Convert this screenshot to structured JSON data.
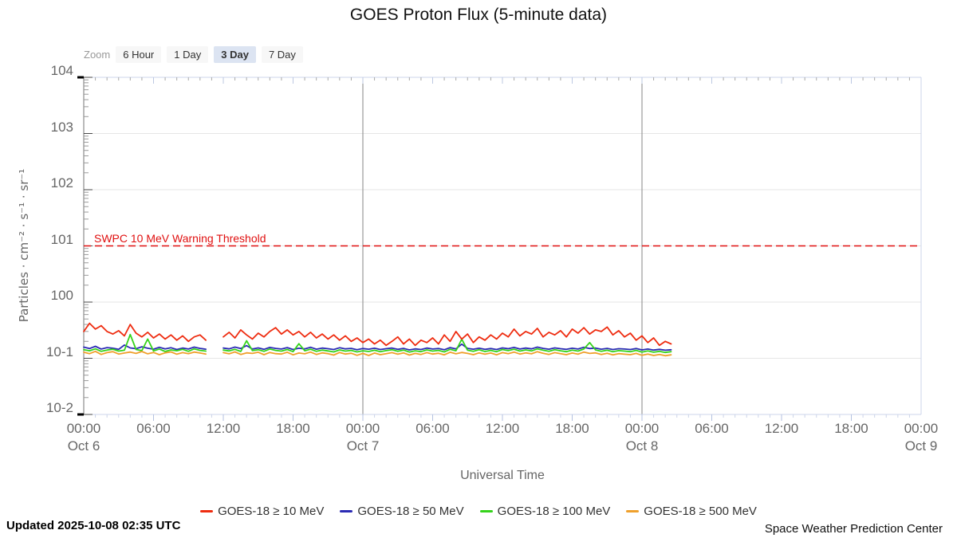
{
  "title": "GOES Proton Flux (5-minute data)",
  "zoom": {
    "label": "Zoom",
    "buttons": [
      {
        "label": "6 Hour",
        "selected": false
      },
      {
        "label": "1 Day",
        "selected": false
      },
      {
        "label": "3 Day",
        "selected": true
      },
      {
        "label": "7 Day",
        "selected": false
      }
    ]
  },
  "y_axis": {
    "title": "Particles · cm⁻² · s⁻¹ · sr⁻¹",
    "ticks": [
      {
        "exp": 4,
        "label": "104"
      },
      {
        "exp": 3,
        "label": "103"
      },
      {
        "exp": 2,
        "label": "102"
      },
      {
        "exp": 1,
        "label": "101"
      },
      {
        "exp": 0,
        "label": "100"
      },
      {
        "exp": -1,
        "label": "10-1"
      },
      {
        "exp": -2,
        "label": "10-2"
      }
    ]
  },
  "x_axis": {
    "title": "Universal Time",
    "ticks": [
      {
        "hour": 0,
        "label": "00:00",
        "date": "Oct 6"
      },
      {
        "hour": 6,
        "label": "06:00",
        "date": ""
      },
      {
        "hour": 12,
        "label": "12:00",
        "date": ""
      },
      {
        "hour": 18,
        "label": "18:00",
        "date": ""
      },
      {
        "hour": 24,
        "label": "00:00",
        "date": "Oct 7"
      },
      {
        "hour": 30,
        "label": "06:00",
        "date": ""
      },
      {
        "hour": 36,
        "label": "12:00",
        "date": ""
      },
      {
        "hour": 42,
        "label": "18:00",
        "date": ""
      },
      {
        "hour": 48,
        "label": "00:00",
        "date": "Oct 8"
      },
      {
        "hour": 54,
        "label": "06:00",
        "date": ""
      },
      {
        "hour": 60,
        "label": "12:00",
        "date": ""
      },
      {
        "hour": 66,
        "label": "18:00",
        "date": ""
      },
      {
        "hour": 72,
        "label": "00:00",
        "date": "Oct 9"
      }
    ]
  },
  "threshold": {
    "label": "SWPC 10 MeV Warning Threshold",
    "value": 10,
    "color": "#e01010"
  },
  "footer": {
    "updated": "Updated 2025-10-08 02:35 UTC",
    "source": "Space Weather Prediction Center"
  },
  "chart_data": {
    "type": "line",
    "title": "GOES Proton Flux (5-minute data)",
    "xlabel": "Universal Time",
    "ylabel": "Particles · cm⁻² · s⁻¹ · sr⁻¹",
    "x_unit": "hours since Oct 6 00:00 UTC",
    "x_start": 0,
    "x_step": 0.5,
    "xlim": [
      0,
      72
    ],
    "y_scale": "log",
    "ylim": [
      0.01,
      10000
    ],
    "grid": true,
    "day_gridlines_hours": [
      24,
      48
    ],
    "legend_position": "bottom",
    "threshold_value": 10,
    "data_gap_hours": [
      11,
      11.5
    ],
    "series": [
      {
        "name": "GOES-18 ≥ 10 MeV",
        "color": "#ee2c10",
        "values": [
          0.3,
          0.42,
          0.33,
          0.38,
          0.3,
          0.27,
          0.31,
          0.25,
          0.4,
          0.28,
          0.24,
          0.29,
          0.23,
          0.27,
          0.22,
          0.26,
          0.21,
          0.25,
          0.2,
          0.24,
          0.26,
          0.21,
          null,
          null,
          0.24,
          0.29,
          0.23,
          0.32,
          0.26,
          0.22,
          0.28,
          0.24,
          0.3,
          0.35,
          0.27,
          0.32,
          0.26,
          0.3,
          0.24,
          0.29,
          0.23,
          0.27,
          0.22,
          0.26,
          0.21,
          0.25,
          0.2,
          0.23,
          0.19,
          0.22,
          0.18,
          0.21,
          0.17,
          0.2,
          0.24,
          0.18,
          0.22,
          0.17,
          0.21,
          0.19,
          0.23,
          0.18,
          0.26,
          0.2,
          0.3,
          0.22,
          0.27,
          0.19,
          0.24,
          0.21,
          0.26,
          0.22,
          0.28,
          0.24,
          0.33,
          0.25,
          0.3,
          0.27,
          0.34,
          0.24,
          0.29,
          0.26,
          0.31,
          0.24,
          0.33,
          0.28,
          0.35,
          0.27,
          0.32,
          0.3,
          0.36,
          0.26,
          0.31,
          0.24,
          0.28,
          0.21,
          0.25,
          0.19,
          0.23,
          0.17,
          0.2,
          0.18
        ]
      },
      {
        "name": "GOES-18 ≥ 50 MeV",
        "color": "#2b2bb4",
        "values": [
          0.158,
          0.149,
          0.163,
          0.146,
          0.155,
          0.151,
          0.144,
          0.172,
          0.153,
          0.148,
          0.16,
          0.151,
          0.145,
          0.157,
          0.147,
          0.154,
          0.143,
          0.152,
          0.146,
          0.158,
          0.15,
          0.145,
          null,
          null,
          0.152,
          0.147,
          0.158,
          0.149,
          0.168,
          0.146,
          0.153,
          0.144,
          0.156,
          0.15,
          0.146,
          0.155,
          0.143,
          0.151,
          0.147,
          0.157,
          0.145,
          0.152,
          0.148,
          0.143,
          0.154,
          0.147,
          0.15,
          0.142,
          0.149,
          0.145,
          0.151,
          0.143,
          0.148,
          0.152,
          0.144,
          0.15,
          0.141,
          0.147,
          0.143,
          0.152,
          0.146,
          0.149,
          0.142,
          0.155,
          0.147,
          0.178,
          0.15,
          0.145,
          0.151,
          0.144,
          0.149,
          0.143,
          0.153,
          0.148,
          0.156,
          0.146,
          0.152,
          0.147,
          0.158,
          0.15,
          0.145,
          0.153,
          0.148,
          0.144,
          0.151,
          0.146,
          0.157,
          0.149,
          0.152,
          0.145,
          0.15,
          0.143,
          0.148,
          0.146,
          0.143,
          0.149,
          0.141,
          0.146,
          0.14,
          0.144,
          0.139,
          0.142
        ]
      },
      {
        "name": "GOES-18 ≥ 100 MeV",
        "color": "#35d31b",
        "values": [
          0.142,
          0.136,
          0.147,
          0.133,
          0.14,
          0.145,
          0.134,
          0.139,
          0.265,
          0.143,
          0.137,
          0.22,
          0.135,
          0.146,
          0.132,
          0.141,
          0.136,
          0.144,
          0.133,
          0.147,
          0.138,
          0.134,
          null,
          null,
          0.14,
          0.135,
          0.144,
          0.132,
          0.205,
          0.137,
          0.142,
          0.133,
          0.146,
          0.138,
          0.134,
          0.143,
          0.131,
          0.182,
          0.136,
          0.145,
          0.133,
          0.14,
          0.135,
          0.13,
          0.141,
          0.134,
          0.138,
          0.13,
          0.136,
          0.132,
          0.139,
          0.131,
          0.137,
          0.142,
          0.133,
          0.14,
          0.129,
          0.136,
          0.131,
          0.141,
          0.134,
          0.138,
          0.13,
          0.144,
          0.136,
          0.218,
          0.139,
          0.133,
          0.142,
          0.132,
          0.138,
          0.131,
          0.143,
          0.137,
          0.145,
          0.134,
          0.141,
          0.135,
          0.147,
          0.139,
          0.133,
          0.142,
          0.136,
          0.131,
          0.14,
          0.134,
          0.146,
          0.19,
          0.141,
          0.133,
          0.139,
          0.131,
          0.137,
          0.134,
          0.131,
          0.138,
          0.129,
          0.135,
          0.128,
          0.133,
          0.127,
          0.131
        ]
      },
      {
        "name": "GOES-18 ≥ 500 MeV",
        "color": "#efa02c",
        "values": [
          0.128,
          0.121,
          0.133,
          0.117,
          0.126,
          0.131,
          0.119,
          0.124,
          0.129,
          0.122,
          0.132,
          0.12,
          0.127,
          0.116,
          0.125,
          0.13,
          0.118,
          0.126,
          0.121,
          0.129,
          0.124,
          0.119,
          null,
          null,
          0.126,
          0.12,
          0.13,
          0.117,
          0.125,
          0.122,
          0.128,
          0.116,
          0.127,
          0.121,
          0.119,
          0.128,
          0.115,
          0.124,
          0.12,
          0.129,
          0.117,
          0.125,
          0.121,
          0.114,
          0.127,
          0.119,
          0.123,
          0.113,
          0.122,
          0.112,
          0.124,
          0.116,
          0.121,
          0.126,
          0.118,
          0.125,
          0.114,
          0.122,
          0.117,
          0.126,
          0.119,
          0.123,
          0.115,
          0.128,
          0.12,
          0.127,
          0.122,
          0.116,
          0.125,
          0.118,
          0.124,
          0.115,
          0.126,
          0.121,
          0.129,
          0.119,
          0.125,
          0.12,
          0.131,
          0.123,
          0.117,
          0.126,
          0.121,
          0.116,
          0.124,
          0.118,
          0.129,
          0.122,
          0.125,
          0.117,
          0.123,
          0.115,
          0.121,
          0.118,
          0.116,
          0.122,
          0.113,
          0.119,
          0.112,
          0.117,
          0.111,
          0.115
        ]
      }
    ]
  }
}
